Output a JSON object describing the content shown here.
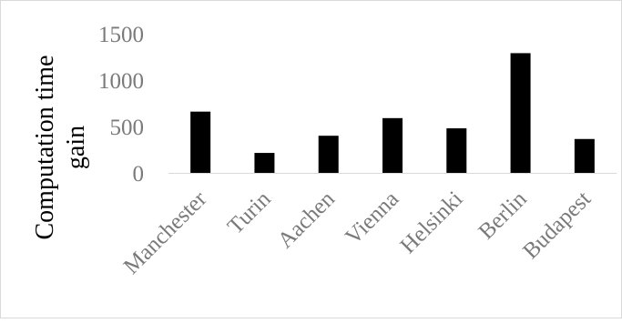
{
  "chart_data": {
    "type": "bar",
    "categories": [
      "Manchester",
      "Turin",
      "Aachen",
      "Vienna",
      "Helsinki",
      "Berlin",
      "Budapest"
    ],
    "values": [
      660,
      215,
      400,
      590,
      480,
      1290,
      365
    ],
    "title": "",
    "xlabel": "",
    "ylabel_lines": [
      "Computation time",
      "gain"
    ],
    "ylim": [
      0,
      1500
    ],
    "yticks": [
      "0",
      "500",
      "1000",
      "1500"
    ],
    "ytick_values": [
      0,
      500,
      1000,
      1500
    ],
    "grid": false,
    "legend": "none",
    "bar_color": "#000000",
    "axis_color": "#d9d9d9"
  }
}
